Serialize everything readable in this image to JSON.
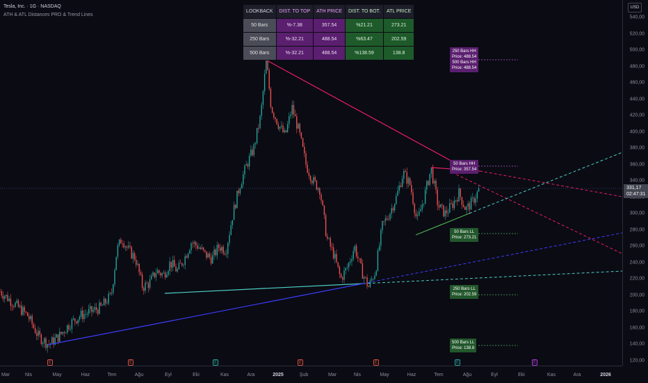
{
  "header": {
    "symbol_line": "Tesla, Inc. · 1G · NASDAQ",
    "indicator_line": "ATH & ATL Distances PRO & Trend Lines"
  },
  "currency": "USD",
  "current_price": {
    "value": "331,17",
    "countdown": "02:47:31"
  },
  "lookback_table": {
    "headers": [
      "LOOKBACK",
      "DIST. TO TOP",
      "ATH PRICE",
      "DIST. TO BOT.",
      "ATL PRICE"
    ],
    "rows": [
      [
        "50 Bars",
        "%-7.38",
        "357.54",
        "%21.21",
        "273.21"
      ],
      [
        "250 Bars",
        "%-32.21",
        "488.54",
        "%63.47",
        "202.59"
      ],
      [
        "500 Bars",
        "%-32.21",
        "488.54",
        "%138.59",
        "138.8"
      ]
    ]
  },
  "labels": {
    "hh_250_500": [
      "250 Bars HH",
      "Price: 488.54",
      "500 Bars HH",
      "Price: 488.54"
    ],
    "hh_50": [
      "50 Bars HH",
      "Price: 357.54"
    ],
    "ll_50": [
      "50 Bars LL",
      "Price: 273.21"
    ],
    "ll_250": [
      "250 Bars LL",
      "Price: 202.59"
    ],
    "ll_500": [
      "500 Bars LL",
      "Price: 138.8"
    ]
  },
  "price_axis": [
    "540,00",
    "520,00",
    "500,00",
    "480,00",
    "460,00",
    "440,00",
    "420,00",
    "400,00",
    "380,00",
    "360,00",
    "340,00",
    "320,00",
    "300,00",
    "280,00",
    "260,00",
    "240,00",
    "220,00",
    "200,00",
    "180,00",
    "160,00",
    "140,00",
    "120,00"
  ],
  "time_axis": [
    "Mar",
    "Nis",
    "May",
    "Haz",
    "Tem",
    "Ağu",
    "Eyl",
    "Eki",
    "Kas",
    "Ara",
    "2025",
    "Şub",
    "Mar",
    "Nis",
    "May",
    "Haz",
    "Tem",
    "Ağu",
    "Eyl",
    "Eki",
    "Kas",
    "Ara",
    "2026"
  ],
  "earnings_marker": "E",
  "colors": {
    "background": "#0b0b14",
    "up_candle": "#26a69a",
    "down_candle": "#ef5350",
    "resistance_line": "#e91e63",
    "support_teal": "#4dd0c4",
    "support_blue": "#3d3dff",
    "support_green": "#4caf50",
    "purple_label": "#5a1f6e",
    "green_label": "#22572b"
  },
  "chart_data": {
    "type": "candlestick",
    "note_close_path": [
      [
        0,
        205
      ],
      [
        20,
        190
      ],
      [
        40,
        175
      ],
      [
        55,
        150
      ],
      [
        70,
        140
      ],
      [
        85,
        150
      ],
      [
        100,
        165
      ],
      [
        115,
        175
      ],
      [
        130,
        180
      ],
      [
        145,
        185
      ],
      [
        160,
        200
      ],
      [
        168,
        255
      ],
      [
        175,
        270
      ],
      [
        185,
        255
      ],
      [
        195,
        245
      ],
      [
        205,
        210
      ],
      [
        215,
        215
      ],
      [
        225,
        230
      ],
      [
        235,
        225
      ],
      [
        245,
        240
      ],
      [
        255,
        230
      ],
      [
        265,
        245
      ],
      [
        275,
        265
      ],
      [
        285,
        260
      ],
      [
        295,
        250
      ],
      [
        305,
        245
      ],
      [
        315,
        260
      ],
      [
        325,
        255
      ],
      [
        335,
        300
      ],
      [
        345,
        335
      ],
      [
        355,
        360
      ],
      [
        365,
        380
      ],
      [
        375,
        420
      ],
      [
        383,
        488
      ],
      [
        390,
        430
      ],
      [
        400,
        410
      ],
      [
        410,
        395
      ],
      [
        420,
        430
      ],
      [
        430,
        400
      ],
      [
        440,
        360
      ],
      [
        450,
        340
      ],
      [
        460,
        330
      ],
      [
        470,
        270
      ],
      [
        480,
        250
      ],
      [
        490,
        220
      ],
      [
        500,
        235
      ],
      [
        510,
        260
      ],
      [
        520,
        230
      ],
      [
        530,
        210
      ],
      [
        540,
        230
      ],
      [
        550,
        285
      ],
      [
        560,
        300
      ],
      [
        570,
        320
      ],
      [
        580,
        350
      ],
      [
        590,
        335
      ],
      [
        600,
        290
      ],
      [
        610,
        320
      ],
      [
        620,
        355
      ],
      [
        630,
        310
      ],
      [
        640,
        300
      ],
      [
        650,
        310
      ],
      [
        660,
        325
      ],
      [
        670,
        305
      ],
      [
        680,
        315
      ],
      [
        690,
        331
      ]
    ],
    "ylim": [
      120,
      540
    ]
  }
}
